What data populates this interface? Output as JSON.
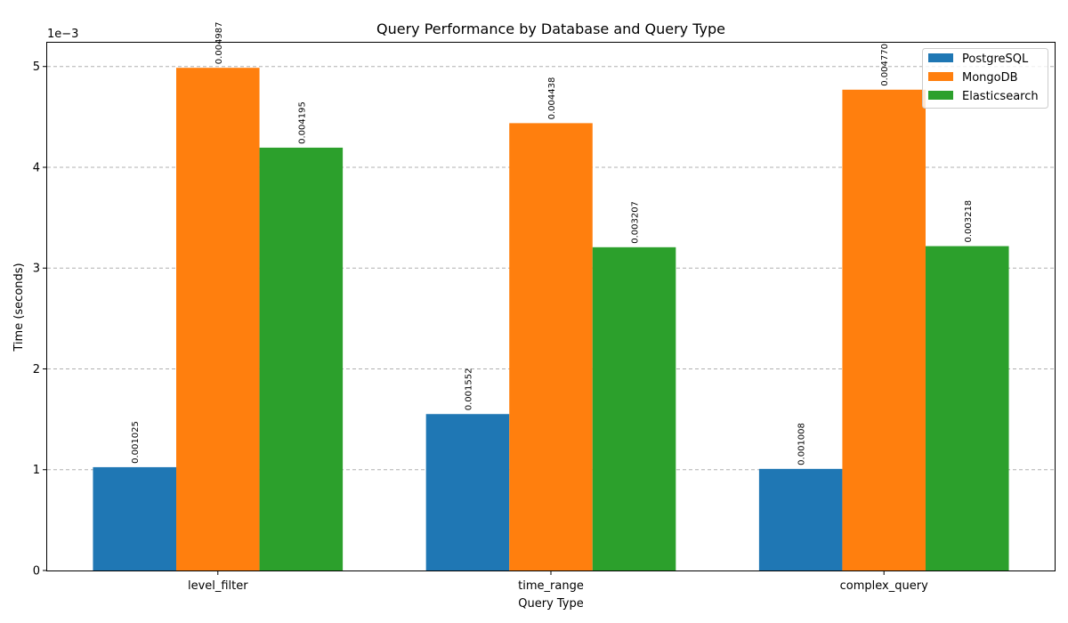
{
  "chart_data": {
    "type": "bar",
    "title": "Query Performance by Database and Query Type",
    "xlabel": "Query Type",
    "ylabel": "Time (seconds)",
    "y_offset_text": "1e−3",
    "y_scale": 0.001,
    "categories": [
      "level_filter",
      "time_range",
      "complex_query"
    ],
    "series": [
      {
        "name": "PostgreSQL",
        "color": "#1f77b4",
        "values": [
          0.001025,
          0.001552,
          0.001008
        ]
      },
      {
        "name": "MongoDB",
        "color": "#ff7f0e",
        "values": [
          0.004987,
          0.004438,
          0.00477
        ]
      },
      {
        "name": "Elasticsearch",
        "color": "#2ca02c",
        "values": [
          0.004195,
          0.003207,
          0.003218
        ]
      }
    ],
    "data_labels": [
      [
        "0.001025",
        "0.001552",
        "0.001008"
      ],
      [
        "0.004987",
        "0.004438",
        "0.004770"
      ],
      [
        "0.004195",
        "0.003207",
        "0.003218"
      ]
    ],
    "yticks": [
      0,
      1,
      2,
      3,
      4,
      5
    ],
    "ylim": [
      0,
      0.005236
    ],
    "grid": "y-dashed",
    "legend": "top-right"
  }
}
